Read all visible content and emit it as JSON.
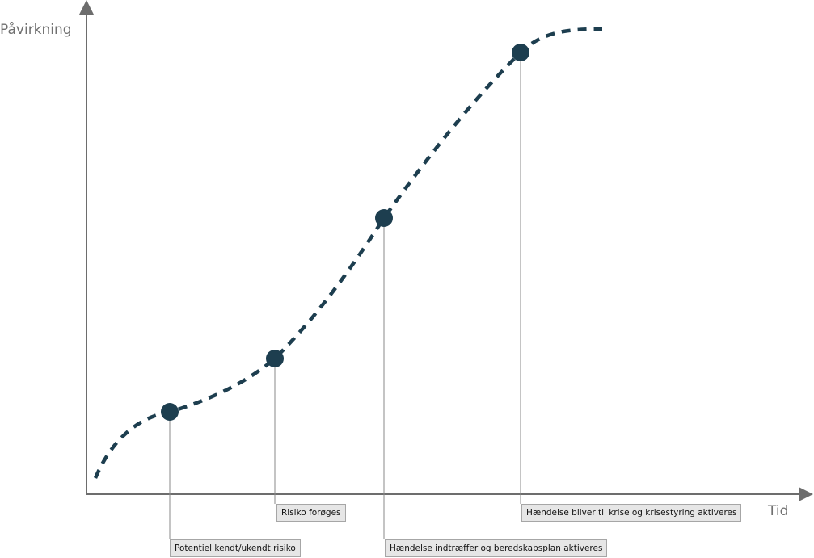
{
  "diagram": {
    "y_axis_label": "Påvirkning",
    "x_axis_label": "Tid",
    "curve_color": "#1d3e4f",
    "line_color": "#8a8a8a",
    "axis_color": "#6d6d6d",
    "milestones": [
      {
        "label": "Potentiel kendt/ukendt risiko"
      },
      {
        "label": "Risiko forøges"
      },
      {
        "label": "Hændelse indtræffer og beredskabsplan aktiveres"
      },
      {
        "label": "Hændelse bliver til krise og krisestyring aktiveres"
      }
    ]
  }
}
